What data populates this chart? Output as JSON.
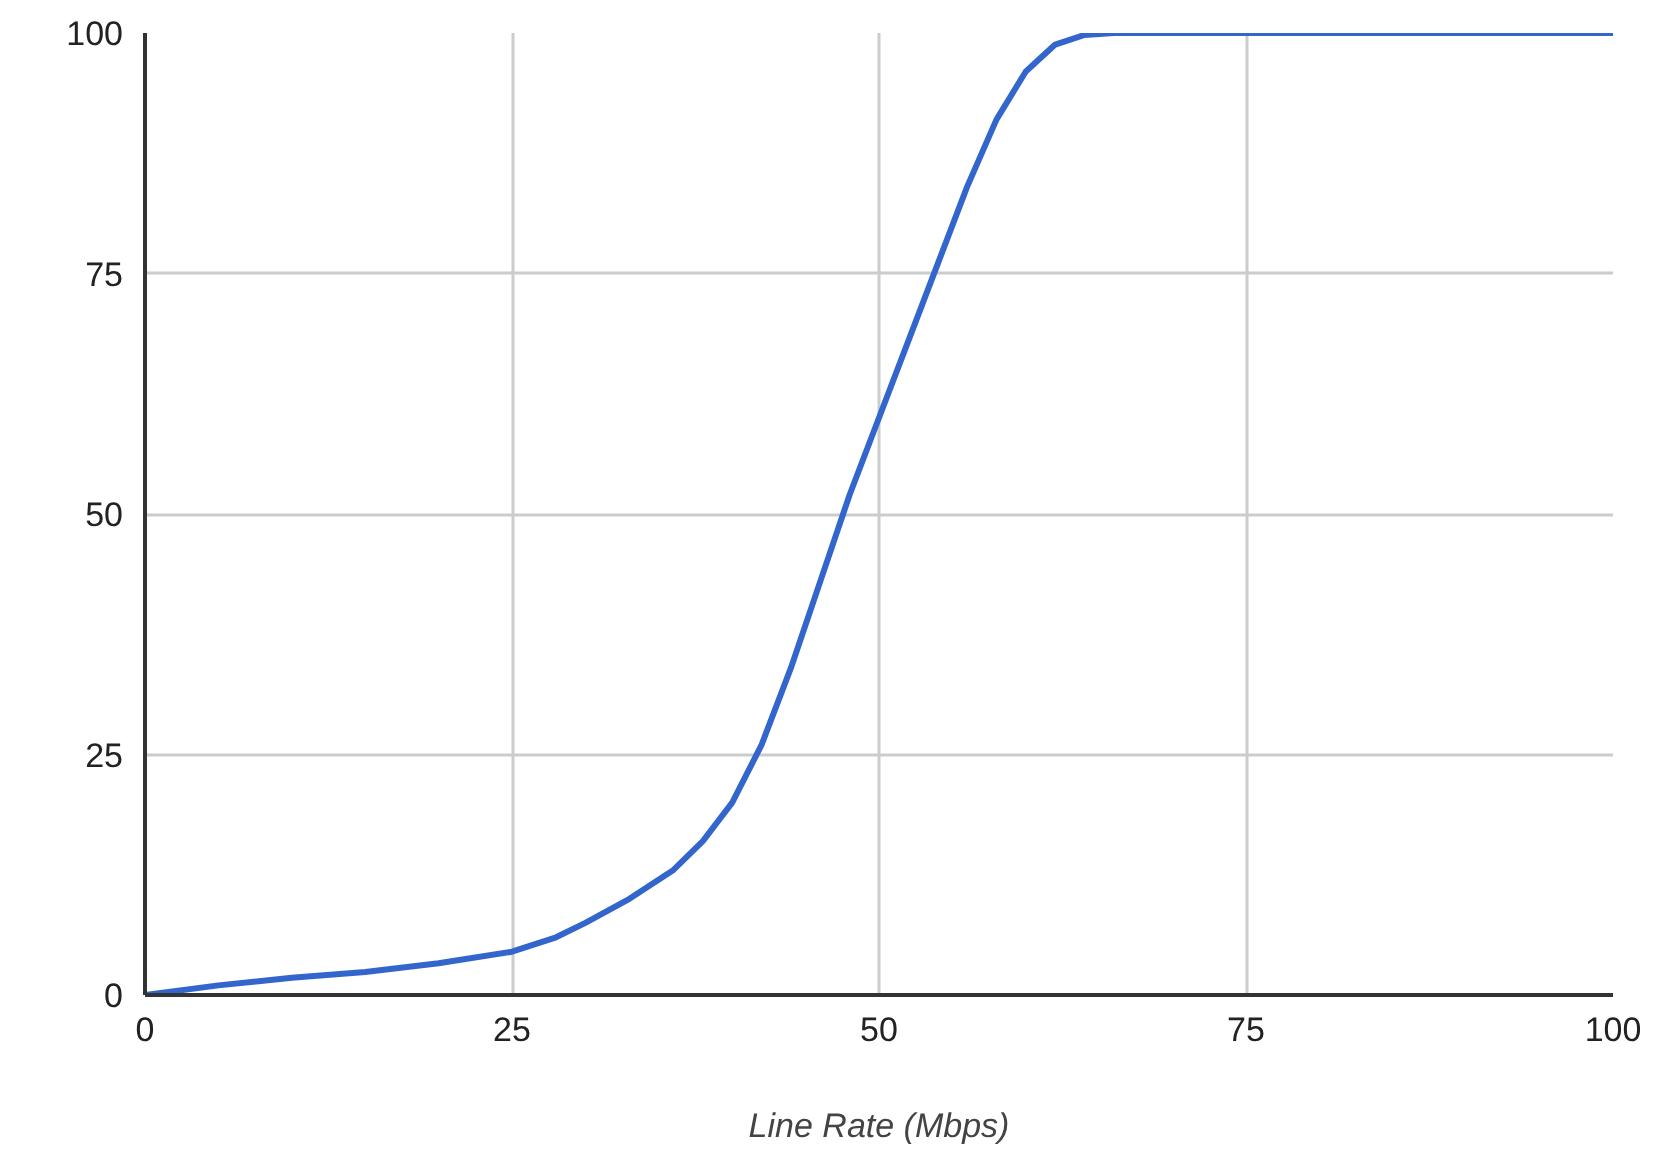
{
  "chart_data": {
    "type": "line",
    "xlabel": "Line Rate (Mbps)",
    "x": [
      0,
      5,
      10,
      15,
      20,
      25,
      28,
      30,
      33,
      36,
      38,
      40,
      42,
      44,
      46,
      48,
      50,
      52,
      54,
      56,
      58,
      60,
      62,
      64,
      66,
      70,
      73,
      76,
      80,
      100
    ],
    "series": [
      {
        "color": "#3366cc",
        "values": [
          0,
          1,
          1.8,
          2.4,
          3.3,
          4.5,
          6,
          7.5,
          10,
          13,
          16,
          20,
          26,
          34,
          43,
          52,
          60,
          68,
          76,
          84,
          91,
          96,
          98.8,
          99.8,
          100,
          100,
          100,
          100,
          100,
          100
        ]
      }
    ],
    "xlim": [
      0,
      100
    ],
    "ylim": [
      0,
      100
    ],
    "xticks": [
      0,
      25,
      50,
      75,
      100
    ],
    "yticks": [
      0,
      25,
      50,
      75,
      100
    ],
    "grid": true,
    "marker": "none",
    "line_style": "solid"
  }
}
